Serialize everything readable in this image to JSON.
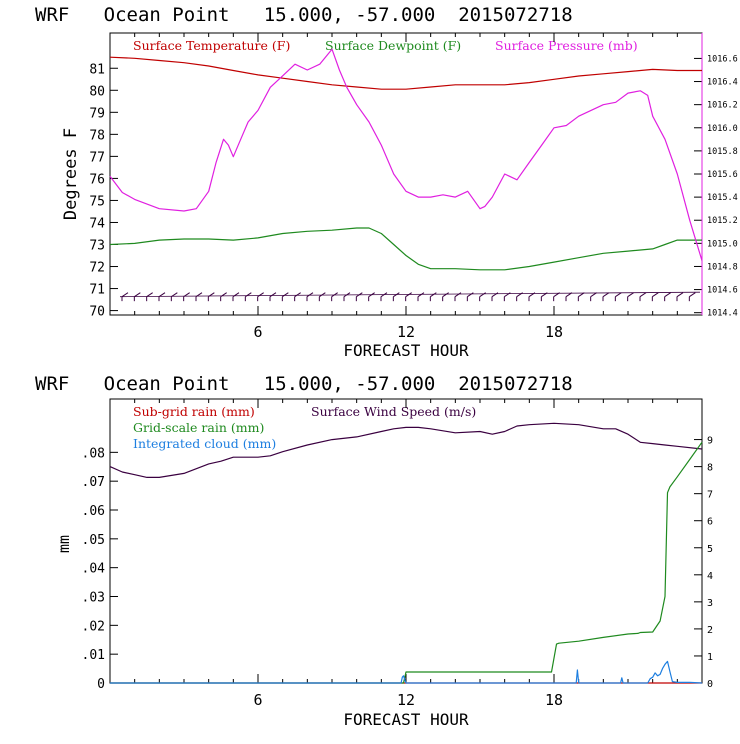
{
  "colors": {
    "axis": "#000000",
    "temperature": "#c00000",
    "dewpoint": "#1f8a1f",
    "pressure": "#e020e0",
    "subgrid": "#c00000",
    "gridscale": "#1f8a1f",
    "cloud": "#1e7fe0",
    "wind": "#3a0040"
  },
  "chart_data": [
    {
      "type": "line",
      "title": "WRF   Ocean Point   15.000, -57.000  2015072718",
      "xlabel": "FORECAST HOUR",
      "ylabel": "Degrees F",
      "xlim": [
        0,
        24
      ],
      "ylim": [
        69.8,
        82.6
      ],
      "y2lim": [
        1014.38,
        1016.82
      ],
      "xticks": [
        6,
        12,
        18
      ],
      "xtick_labels": [
        "6",
        "12",
        "18"
      ],
      "yticks": [
        70,
        71,
        72,
        73,
        74,
        75,
        76,
        77,
        78,
        79,
        80,
        81
      ],
      "ytick_labels": [
        "70",
        "71",
        "72",
        "73",
        "74",
        "75",
        "76",
        "77",
        "78",
        "79",
        "80",
        "81"
      ],
      "y2ticks": [
        1014.4,
        1014.6,
        1014.8,
        1015.0,
        1015.2,
        1015.4,
        1015.6,
        1015.8,
        1016.0,
        1016.2,
        1016.4,
        1016.6
      ],
      "y2tick_labels": [
        "1014.4",
        "1014.6",
        "1014.8",
        "1015.0",
        "1015.2",
        "1015.4",
        "1015.6",
        "1015.8",
        "1016.0",
        "1016.2",
        "1016.4",
        "1016.6"
      ],
      "legend": [
        "Surface Temperature (F)",
        "Surface Dewpoint (F)",
        "Surface Pressure (mb)"
      ],
      "series": [
        {
          "name": "Surface Temperature (F)",
          "axis": "left",
          "x": [
            0,
            1,
            2,
            3,
            4,
            5,
            6,
            7,
            8,
            9,
            10,
            11,
            12,
            13,
            14,
            15,
            16,
            17,
            18,
            19,
            20,
            21,
            22,
            23,
            24
          ],
          "y": [
            81.5,
            81.45,
            81.35,
            81.25,
            81.1,
            80.9,
            80.7,
            80.55,
            80.4,
            80.25,
            80.15,
            80.05,
            80.05,
            80.15,
            80.25,
            80.25,
            80.25,
            80.35,
            80.5,
            80.65,
            80.75,
            80.85,
            80.95,
            80.9,
            80.9
          ]
        },
        {
          "name": "Surface Dewpoint (F)",
          "axis": "left",
          "x": [
            0,
            1,
            2,
            3,
            4,
            5,
            6,
            7,
            8,
            9,
            10,
            10.5,
            11,
            11.5,
            12,
            12.5,
            13,
            14,
            15,
            16,
            17,
            18,
            19,
            20,
            21,
            22,
            22.5,
            23,
            24
          ],
          "y": [
            73.0,
            73.05,
            73.2,
            73.25,
            73.25,
            73.2,
            73.3,
            73.5,
            73.6,
            73.65,
            73.75,
            73.75,
            73.5,
            73.0,
            72.5,
            72.1,
            71.9,
            71.9,
            71.85,
            71.85,
            72.0,
            72.2,
            72.4,
            72.6,
            72.7,
            72.8,
            73.0,
            73.2,
            73.2
          ]
        },
        {
          "name": "Surface Pressure (mb)",
          "axis": "right",
          "x": [
            0,
            0.5,
            1,
            2,
            3,
            3.5,
            4,
            4.3,
            4.6,
            4.8,
            5.0,
            5.3,
            5.6,
            6,
            6.5,
            7,
            7.5,
            8,
            8.5,
            9,
            9.3,
            9.6,
            10,
            10.5,
            11,
            11.5,
            12,
            12.5,
            13,
            13.5,
            14,
            14.5,
            15,
            15.2,
            15.5,
            16,
            16.5,
            17,
            17.5,
            18,
            18.5,
            19,
            19.5,
            20,
            20.5,
            21,
            21.5,
            21.8,
            22,
            22.5,
            23,
            23.5,
            24
          ],
          "y": [
            1015.58,
            1015.44,
            1015.38,
            1015.3,
            1015.28,
            1015.3,
            1015.45,
            1015.7,
            1015.9,
            1015.85,
            1015.75,
            1015.9,
            1016.05,
            1016.15,
            1016.35,
            1016.45,
            1016.55,
            1016.5,
            1016.55,
            1016.68,
            1016.5,
            1016.35,
            1016.2,
            1016.05,
            1015.85,
            1015.6,
            1015.45,
            1015.4,
            1015.4,
            1015.42,
            1015.4,
            1015.45,
            1015.3,
            1015.32,
            1015.4,
            1015.6,
            1015.55,
            1015.7,
            1015.85,
            1016.0,
            1016.02,
            1016.1,
            1016.15,
            1016.2,
            1016.22,
            1016.3,
            1016.32,
            1016.28,
            1016.1,
            1015.9,
            1015.6,
            1015.2,
            1014.85
          ]
        },
        {
          "name": "Surface Wind Barbs",
          "axis": "left",
          "marker": "barb",
          "level": 70.7
        }
      ]
    },
    {
      "type": "line",
      "title": "WRF   Ocean Point   15.000, -57.000  2015072718",
      "xlabel": "FORECAST HOUR",
      "ylabel": "mm",
      "xlim": [
        0,
        24
      ],
      "ylim": [
        0,
        0.0985
      ],
      "y2lim": [
        0,
        10.5
      ],
      "xticks": [
        6,
        12,
        18
      ],
      "xtick_labels": [
        "6",
        "12",
        "18"
      ],
      "yticks": [
        0,
        0.01,
        0.02,
        0.03,
        0.04,
        0.05,
        0.06,
        0.07,
        0.08
      ],
      "ytick_labels": [
        "0",
        ".01",
        ".02",
        ".03",
        ".04",
        ".05",
        ".06",
        ".07",
        ".08"
      ],
      "y2ticks": [
        0,
        1,
        2,
        3,
        4,
        5,
        6,
        7,
        8,
        9
      ],
      "y2tick_labels": [
        "0",
        "1",
        "2",
        "3",
        "4",
        "5",
        "6",
        "7",
        "8",
        "9"
      ],
      "legend": [
        "Sub-grid rain (mm)",
        "Surface Wind Speed (m/s)",
        "Grid-scale rain (mm)",
        "Integrated cloud (mm)"
      ],
      "series": [
        {
          "name": "Sub-grid rain (mm)",
          "axis": "left",
          "x": [
            0,
            24
          ],
          "y": [
            0,
            0
          ]
        },
        {
          "name": "Surface Wind Speed (m/s)",
          "axis": "right",
          "x": [
            0,
            0.5,
            1,
            1.5,
            2,
            3,
            4,
            4.5,
            5,
            5.5,
            6,
            6.5,
            7,
            8,
            9,
            10,
            11,
            11.5,
            12,
            12.5,
            13,
            14,
            15,
            15.5,
            16,
            16.5,
            17,
            18,
            19,
            20,
            20.5,
            21,
            21.5,
            22,
            22.5,
            23,
            24
          ],
          "y": [
            8.0,
            7.8,
            7.7,
            7.6,
            7.6,
            7.75,
            8.1,
            8.2,
            8.35,
            8.35,
            8.35,
            8.4,
            8.55,
            8.8,
            9.0,
            9.1,
            9.3,
            9.4,
            9.45,
            9.45,
            9.4,
            9.25,
            9.3,
            9.2,
            9.3,
            9.5,
            9.55,
            9.6,
            9.55,
            9.4,
            9.4,
            9.2,
            8.9,
            8.85,
            8.8,
            8.75,
            8.65
          ]
        },
        {
          "name": "Grid-scale rain (mm)",
          "axis": "left",
          "x": [
            0,
            11.9,
            12.0,
            17.9,
            18.1,
            18.2,
            19,
            20,
            21,
            21.4,
            21.5,
            22,
            22.3,
            22.5,
            22.6,
            22.7,
            23,
            23.5,
            24
          ],
          "y": [
            0,
            0,
            0.0038,
            0.0038,
            0.0135,
            0.0138,
            0.0145,
            0.0158,
            0.017,
            0.0172,
            0.0175,
            0.0177,
            0.0215,
            0.03,
            0.066,
            0.068,
            0.0715,
            0.0775,
            0.0835
          ]
        },
        {
          "name": "Integrated cloud (mm)",
          "axis": "left",
          "x": [
            0,
            11.8,
            11.85,
            11.9,
            12.0,
            18.9,
            18.95,
            19.0,
            20.7,
            20.75,
            20.8,
            21.8,
            21.9,
            22.0,
            22.1,
            22.2,
            22.3,
            22.4,
            22.5,
            22.6,
            22.7,
            22.8,
            23,
            23.5,
            24
          ],
          "y": [
            0,
            0,
            0.002,
            0.0025,
            0,
            0,
            0.0045,
            0,
            0,
            0.0018,
            0,
            0,
            0.0015,
            0.002,
            0.0035,
            0.0025,
            0.003,
            0.005,
            0.0065,
            0.0075,
            0.004,
            0.0005,
            0.0002,
            0.0002,
            0
          ]
        }
      ]
    }
  ]
}
